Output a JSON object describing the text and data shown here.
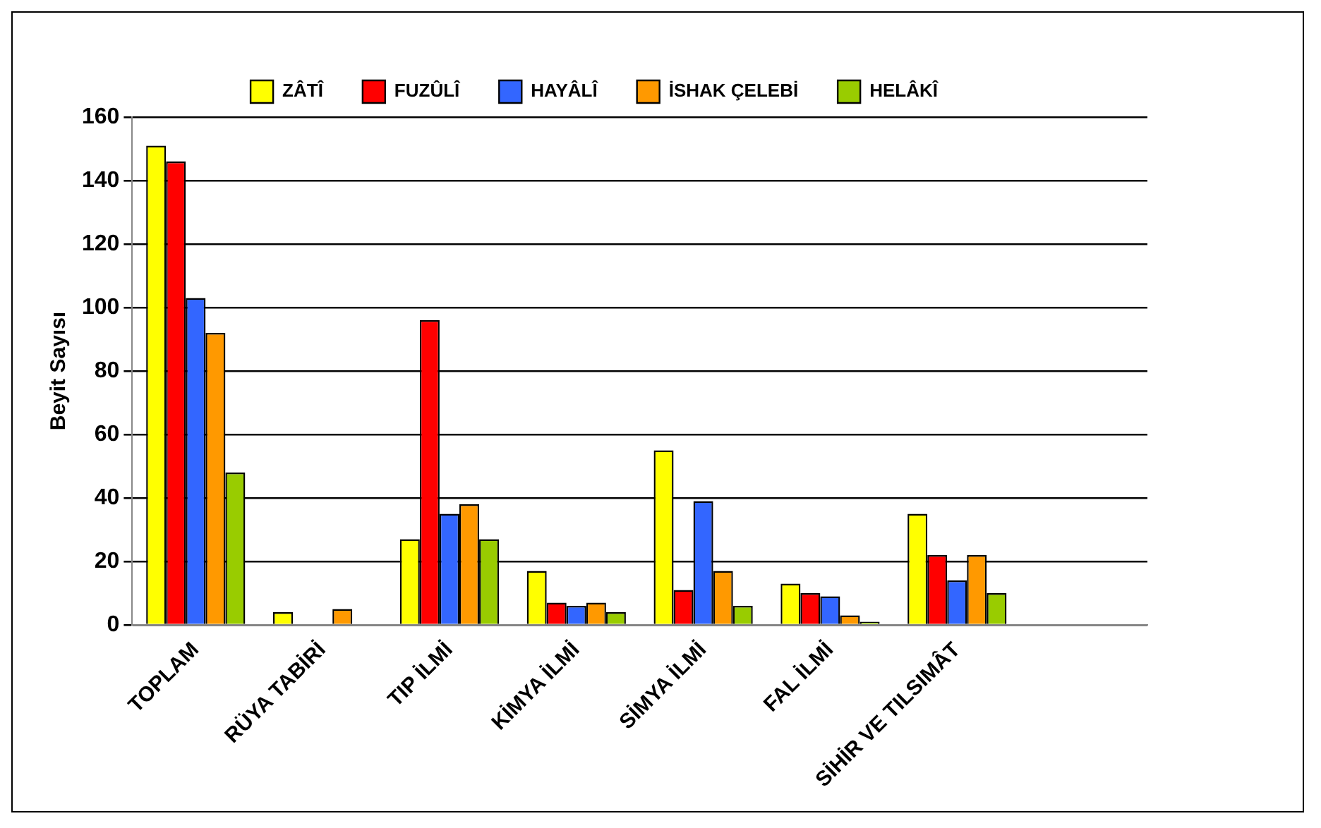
{
  "chart_data": {
    "type": "bar",
    "ylabel": "Beyit Sayısı",
    "categories": [
      "TOPLAM",
      "RÜYA TABİRİ",
      "TIP İLMİ",
      "KİMYA İLMİ",
      "SİMYA İLMİ",
      "FAL İLMİ",
      "SİHİR VE TILSIMÂT",
      null
    ],
    "series": [
      {
        "name": "ZÂTÎ",
        "color": "#ffff00",
        "values": [
          151,
          4,
          27,
          17,
          55,
          13,
          35,
          null
        ]
      },
      {
        "name": "FUZÛLÎ",
        "color": "#ff0000",
        "values": [
          146,
          null,
          96,
          7,
          11,
          10,
          22,
          null
        ]
      },
      {
        "name": "HAYÂLÎ",
        "color": "#3366ff",
        "values": [
          103,
          null,
          35,
          6,
          39,
          9,
          14,
          null
        ]
      },
      {
        "name": "İSHAK ÇELEBİ",
        "color": "#ff9900",
        "values": [
          92,
          5,
          38,
          7,
          17,
          3,
          22,
          null
        ]
      },
      {
        "name": "HELÂKÎ",
        "color": "#99cc00",
        "values": [
          48,
          null,
          27,
          4,
          6,
          1,
          10,
          null
        ]
      }
    ],
    "ylim": [
      0,
      160
    ],
    "yticks": [
      0,
      20,
      40,
      60,
      80,
      100,
      120,
      140,
      160
    ],
    "grid": "y",
    "legend": "top"
  }
}
